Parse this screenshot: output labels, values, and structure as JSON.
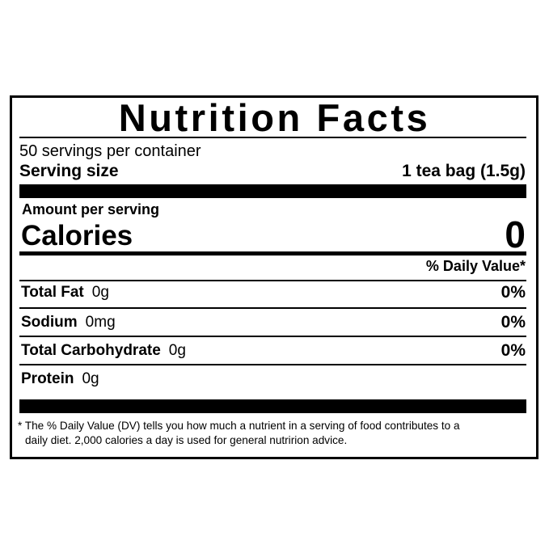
{
  "label": {
    "title": "Nutrition Facts",
    "servings_per_container": "50 servings per container",
    "serving_size_label": "Serving size",
    "serving_size_value": "1 tea bag (1.5g)",
    "amount_per_serving": "Amount per serving",
    "calories_label": "Calories",
    "calories_value": "0",
    "daily_value_header": "% Daily Value*",
    "nutrients": [
      {
        "name": "Total Fat",
        "amount": "0g",
        "dv": "0%"
      },
      {
        "name": "Sodium",
        "amount": "0mg",
        "dv": "0%"
      },
      {
        "name": "Total Carbohydrate",
        "amount": "0g",
        "dv": "0%"
      },
      {
        "name": "Protein",
        "amount": "0g"
      }
    ],
    "footnote_line1": "* The % Daily Value (DV) tells you how much a nutrient in a serving of food contributes to a",
    "footnote_line2": "daily diet. 2,000 calories a day is used for general nutririon advice."
  }
}
